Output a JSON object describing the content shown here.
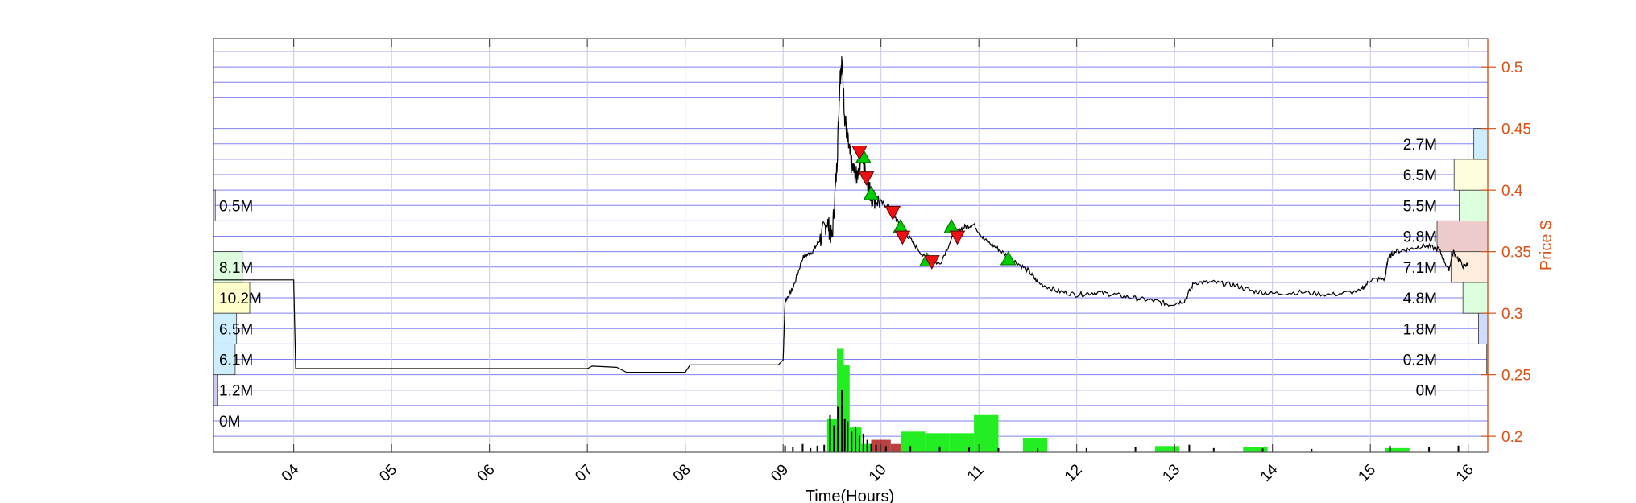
{
  "chart_data": {
    "type": "line",
    "title": "",
    "xlabel": "Time(Hours)",
    "ylabel": "Price $",
    "x_tick_labels": [
      "04",
      "05",
      "06",
      "07",
      "08",
      "09",
      "10",
      "11",
      "12",
      "13",
      "14",
      "15",
      "16"
    ],
    "xlim": [
      3.18,
      16.2
    ],
    "ylim": [
      0.187,
      0.523
    ],
    "y_ticks": [
      0.2,
      0.25,
      0.3,
      0.35,
      0.4,
      0.45,
      0.5
    ],
    "y_tick_labels": [
      "0.2",
      "0.25",
      "0.3",
      "0.35",
      "0.4",
      "0.45",
      "0.5"
    ],
    "grid": true,
    "colors": {
      "price_line": "#000000",
      "axis_right": "#d95319",
      "grid_blue": "#4a4aee",
      "grid_grey": "#c8c8e6",
      "buy_marker": "#00cc00",
      "sell_marker": "#ee1111",
      "volume_green": "#22ee22",
      "volume_red": "#aa1111"
    },
    "price_series": [
      [
        3.18,
        0.327
      ],
      [
        4.0,
        0.327
      ],
      [
        4.02,
        0.255
      ],
      [
        7.0,
        0.255
      ],
      [
        7.05,
        0.257
      ],
      [
        7.3,
        0.256
      ],
      [
        7.4,
        0.252
      ],
      [
        8.0,
        0.252
      ],
      [
        8.05,
        0.258
      ],
      [
        8.95,
        0.258
      ],
      [
        9.0,
        0.262
      ],
      [
        9.02,
        0.31
      ],
      [
        9.1,
        0.32
      ],
      [
        9.2,
        0.345
      ],
      [
        9.3,
        0.35
      ],
      [
        9.38,
        0.36
      ],
      [
        9.45,
        0.375
      ],
      [
        9.5,
        0.36
      ],
      [
        9.55,
        0.42
      ],
      [
        9.58,
        0.49
      ],
      [
        9.6,
        0.505
      ],
      [
        9.63,
        0.46
      ],
      [
        9.66,
        0.44
      ],
      [
        9.7,
        0.42
      ],
      [
        9.75,
        0.41
      ],
      [
        9.8,
        0.43
      ],
      [
        9.85,
        0.41
      ],
      [
        9.9,
        0.395
      ],
      [
        10.0,
        0.39
      ],
      [
        10.1,
        0.385
      ],
      [
        10.2,
        0.37
      ],
      [
        10.3,
        0.36
      ],
      [
        10.45,
        0.345
      ],
      [
        10.6,
        0.34
      ],
      [
        10.75,
        0.365
      ],
      [
        10.85,
        0.37
      ],
      [
        10.95,
        0.372
      ],
      [
        11.05,
        0.36
      ],
      [
        11.2,
        0.352
      ],
      [
        11.35,
        0.343
      ],
      [
        11.5,
        0.335
      ],
      [
        11.6,
        0.325
      ],
      [
        11.8,
        0.318
      ],
      [
        12.0,
        0.315
      ],
      [
        12.2,
        0.317
      ],
      [
        12.4,
        0.315
      ],
      [
        12.6,
        0.312
      ],
      [
        12.8,
        0.31
      ],
      [
        12.95,
        0.307
      ],
      [
        13.1,
        0.31
      ],
      [
        13.2,
        0.325
      ],
      [
        13.4,
        0.325
      ],
      [
        13.6,
        0.323
      ],
      [
        13.8,
        0.318
      ],
      [
        14.0,
        0.316
      ],
      [
        14.3,
        0.317
      ],
      [
        14.6,
        0.315
      ],
      [
        14.9,
        0.318
      ],
      [
        15.0,
        0.327
      ],
      [
        15.15,
        0.328
      ],
      [
        15.18,
        0.345
      ],
      [
        15.25,
        0.35
      ],
      [
        15.4,
        0.352
      ],
      [
        15.55,
        0.355
      ],
      [
        15.7,
        0.352
      ],
      [
        15.8,
        0.335
      ],
      [
        15.85,
        0.35
      ],
      [
        15.95,
        0.338
      ],
      [
        16.0,
        0.34
      ]
    ],
    "buy_markers": [
      [
        9.82,
        0.427
      ],
      [
        9.9,
        0.397
      ],
      [
        10.2,
        0.37
      ],
      [
        10.47,
        0.343
      ],
      [
        10.72,
        0.37
      ],
      [
        11.3,
        0.344
      ]
    ],
    "sell_markers": [
      [
        9.78,
        0.431
      ],
      [
        9.85,
        0.41
      ],
      [
        10.12,
        0.382
      ],
      [
        10.22,
        0.362
      ],
      [
        10.52,
        0.342
      ],
      [
        10.78,
        0.362
      ]
    ],
    "volume_bars_green": [
      [
        9.45,
        9.55,
        0.08
      ],
      [
        9.55,
        9.62,
        0.25
      ],
      [
        9.62,
        9.68,
        0.21
      ],
      [
        9.68,
        9.8,
        0.06
      ],
      [
        9.8,
        9.9,
        0.02
      ],
      [
        10.2,
        10.45,
        0.05
      ],
      [
        10.45,
        10.7,
        0.046
      ],
      [
        10.7,
        10.95,
        0.046
      ],
      [
        10.95,
        11.2,
        0.09
      ],
      [
        11.45,
        11.7,
        0.035
      ],
      [
        12.8,
        13.05,
        0.015
      ],
      [
        13.7,
        13.95,
        0.012
      ],
      [
        15.15,
        15.4,
        0.01
      ]
    ],
    "volume_bars_red": [
      [
        9.9,
        10.1,
        0.03
      ],
      [
        10.1,
        10.2,
        0.02
      ]
    ],
    "volume_spikes_black": [
      [
        9.02,
        0.016
      ],
      [
        9.1,
        0.012
      ],
      [
        9.2,
        0.02
      ],
      [
        9.28,
        0.01
      ],
      [
        9.35,
        0.016
      ],
      [
        9.42,
        0.018
      ],
      [
        9.48,
        0.09
      ],
      [
        9.52,
        0.065
      ],
      [
        9.56,
        0.11
      ],
      [
        9.6,
        0.15
      ],
      [
        9.63,
        0.08
      ],
      [
        9.66,
        0.075
      ],
      [
        9.7,
        0.05
      ],
      [
        9.74,
        0.06
      ],
      [
        9.78,
        0.04
      ],
      [
        9.82,
        0.045
      ],
      [
        9.86,
        0.03
      ],
      [
        9.9,
        0.02
      ],
      [
        9.95,
        0.018
      ],
      [
        10.05,
        0.015
      ],
      [
        10.3,
        0.015
      ],
      [
        10.6,
        0.014
      ],
      [
        10.9,
        0.012
      ],
      [
        11.2,
        0.01
      ],
      [
        11.6,
        0.01
      ],
      [
        12.1,
        0.01
      ],
      [
        12.6,
        0.012
      ],
      [
        13.15,
        0.018
      ],
      [
        13.4,
        0.01
      ],
      [
        13.9,
        0.009
      ],
      [
        14.4,
        0.008
      ],
      [
        15.2,
        0.016
      ],
      [
        15.6,
        0.012
      ],
      [
        15.9,
        0.016
      ]
    ],
    "volume_profile_left": [
      {
        "label": "0M",
        "level": 0.2125,
        "value": 0.0
      },
      {
        "label": "1.2M",
        "level": 0.2375,
        "value": 1.2
      },
      {
        "label": "6.1M",
        "level": 0.2625,
        "value": 6.1
      },
      {
        "label": "6.5M",
        "level": 0.2875,
        "value": 6.5
      },
      {
        "label": "10.2M",
        "level": 0.3125,
        "value": 10.2
      },
      {
        "label": "8.1M",
        "level": 0.3375,
        "value": 8.1
      },
      {
        "label": "0.5M",
        "level": 0.3875,
        "value": 0.5
      }
    ],
    "volume_profile_right": [
      {
        "label": "0M",
        "level": 0.2375,
        "value": 0.0
      },
      {
        "label": "0.2M",
        "level": 0.2625,
        "value": 0.2
      },
      {
        "label": "1.8M",
        "level": 0.2875,
        "value": 1.8
      },
      {
        "label": "4.8M",
        "level": 0.3125,
        "value": 4.8
      },
      {
        "label": "7.1M",
        "level": 0.3375,
        "value": 7.1
      },
      {
        "label": "9.8M",
        "level": 0.3625,
        "value": 9.8
      },
      {
        "label": "5.5M",
        "level": 0.3875,
        "value": 5.5
      },
      {
        "label": "6.5M",
        "level": 0.4125,
        "value": 6.5
      },
      {
        "label": "2.7M",
        "level": 0.4375,
        "value": 2.7
      }
    ]
  }
}
